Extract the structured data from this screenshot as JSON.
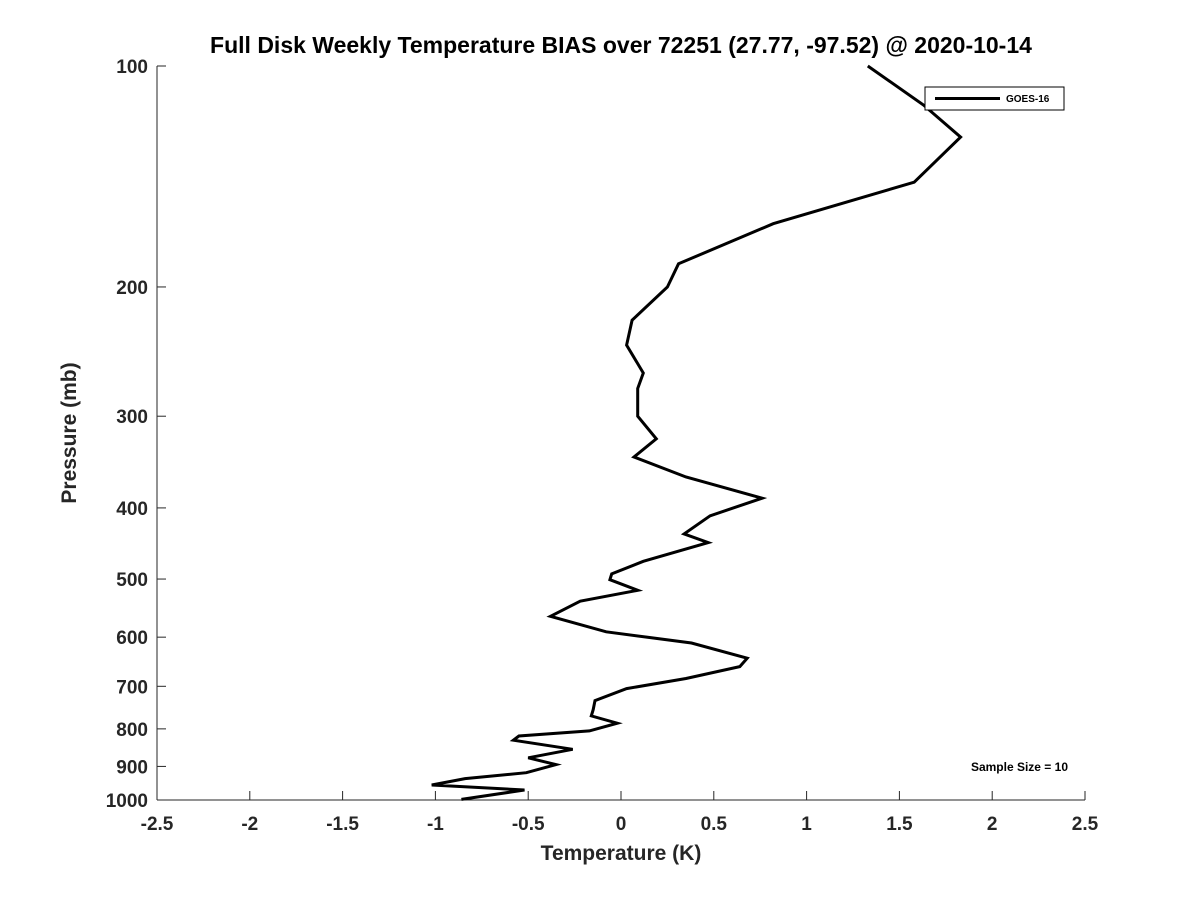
{
  "chart_data": {
    "type": "line",
    "title": "Full Disk Weekly Temperature BIAS over 72251 (27.77, -97.52) @ 2020-10-14",
    "xlabel": "Temperature (K)",
    "ylabel": "Pressure (mb)",
    "xlim": [
      -2.5,
      2.5
    ],
    "ylim": [
      100,
      1000
    ],
    "y_scale": "log",
    "y_reversed": true,
    "x_ticks": [
      -2.5,
      -2,
      -1.5,
      -1,
      -0.5,
      0,
      0.5,
      1,
      1.5,
      2,
      2.5
    ],
    "x_tick_labels": [
      "-2.5",
      "-2",
      "-1.5",
      "-1",
      "-0.5",
      "0",
      "0.5",
      "1",
      "1.5",
      "2",
      "2.5"
    ],
    "y_ticks": [
      100,
      200,
      300,
      400,
      500,
      600,
      700,
      800,
      900,
      1000
    ],
    "y_tick_labels": [
      "100",
      "200",
      "300",
      "400",
      "500",
      "600",
      "700",
      "800",
      "900",
      "1000"
    ],
    "grid": false,
    "legend_position": "top-right",
    "annotation": "Sample Size = 10",
    "series": [
      {
        "name": "GOES-16",
        "color": "#000000",
        "points": [
          {
            "x": 1.33,
            "p": 100
          },
          {
            "x": 1.63,
            "p": 113
          },
          {
            "x": 1.83,
            "p": 125
          },
          {
            "x": 1.58,
            "p": 144
          },
          {
            "x": 0.82,
            "p": 164
          },
          {
            "x": 0.31,
            "p": 186
          },
          {
            "x": 0.25,
            "p": 200
          },
          {
            "x": 0.06,
            "p": 222
          },
          {
            "x": 0.03,
            "p": 240
          },
          {
            "x": 0.12,
            "p": 262
          },
          {
            "x": 0.09,
            "p": 275
          },
          {
            "x": 0.09,
            "p": 300
          },
          {
            "x": 0.19,
            "p": 322
          },
          {
            "x": 0.07,
            "p": 341
          },
          {
            "x": 0.35,
            "p": 363
          },
          {
            "x": 0.76,
            "p": 388
          },
          {
            "x": 0.48,
            "p": 410
          },
          {
            "x": 0.34,
            "p": 434
          },
          {
            "x": 0.47,
            "p": 446
          },
          {
            "x": 0.12,
            "p": 473
          },
          {
            "x": -0.05,
            "p": 492
          },
          {
            "x": -0.06,
            "p": 501
          },
          {
            "x": 0.09,
            "p": 518
          },
          {
            "x": -0.22,
            "p": 536
          },
          {
            "x": -0.38,
            "p": 562
          },
          {
            "x": -0.08,
            "p": 590
          },
          {
            "x": 0.38,
            "p": 611
          },
          {
            "x": 0.68,
            "p": 641
          },
          {
            "x": 0.64,
            "p": 658
          },
          {
            "x": 0.35,
            "p": 683
          },
          {
            "x": 0.03,
            "p": 705
          },
          {
            "x": -0.14,
            "p": 732
          },
          {
            "x": -0.15,
            "p": 753
          },
          {
            "x": -0.16,
            "p": 768
          },
          {
            "x": -0.02,
            "p": 786
          },
          {
            "x": -0.17,
            "p": 805
          },
          {
            "x": -0.55,
            "p": 818
          },
          {
            "x": -0.58,
            "p": 829
          },
          {
            "x": -0.26,
            "p": 853
          },
          {
            "x": -0.5,
            "p": 876
          },
          {
            "x": -0.35,
            "p": 895
          },
          {
            "x": -0.51,
            "p": 918
          },
          {
            "x": -0.84,
            "p": 935
          },
          {
            "x": -1.02,
            "p": 954
          },
          {
            "x": -0.52,
            "p": 969
          },
          {
            "x": -0.86,
            "p": 998
          }
        ]
      }
    ]
  }
}
